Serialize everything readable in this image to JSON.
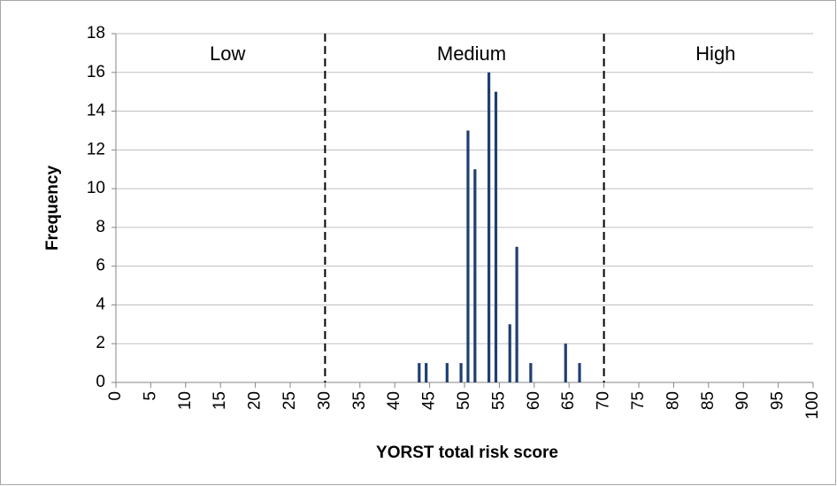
{
  "chart_data": {
    "type": "bar",
    "x_label": "YORST total risk score",
    "y_label": "Frequency",
    "x": [
      43,
      44,
      47,
      49,
      50,
      51,
      53,
      54,
      56,
      57,
      59,
      64,
      66
    ],
    "values": [
      1,
      1,
      1,
      1,
      13,
      11,
      16,
      15,
      3,
      7,
      1,
      2,
      1
    ],
    "color": "#1f3f72",
    "xlim": [
      0,
      100
    ],
    "xticks": [
      0,
      5,
      10,
      15,
      20,
      25,
      30,
      35,
      40,
      45,
      50,
      55,
      60,
      65,
      70,
      75,
      80,
      85,
      90,
      95,
      100
    ],
    "ylim": [
      0,
      18
    ],
    "yticks": [
      0,
      2,
      4,
      6,
      8,
      10,
      12,
      14,
      16,
      18
    ],
    "grid": true,
    "thresholds": [
      30,
      70
    ],
    "annotations": [
      "Low",
      "Medium",
      "High"
    ]
  }
}
